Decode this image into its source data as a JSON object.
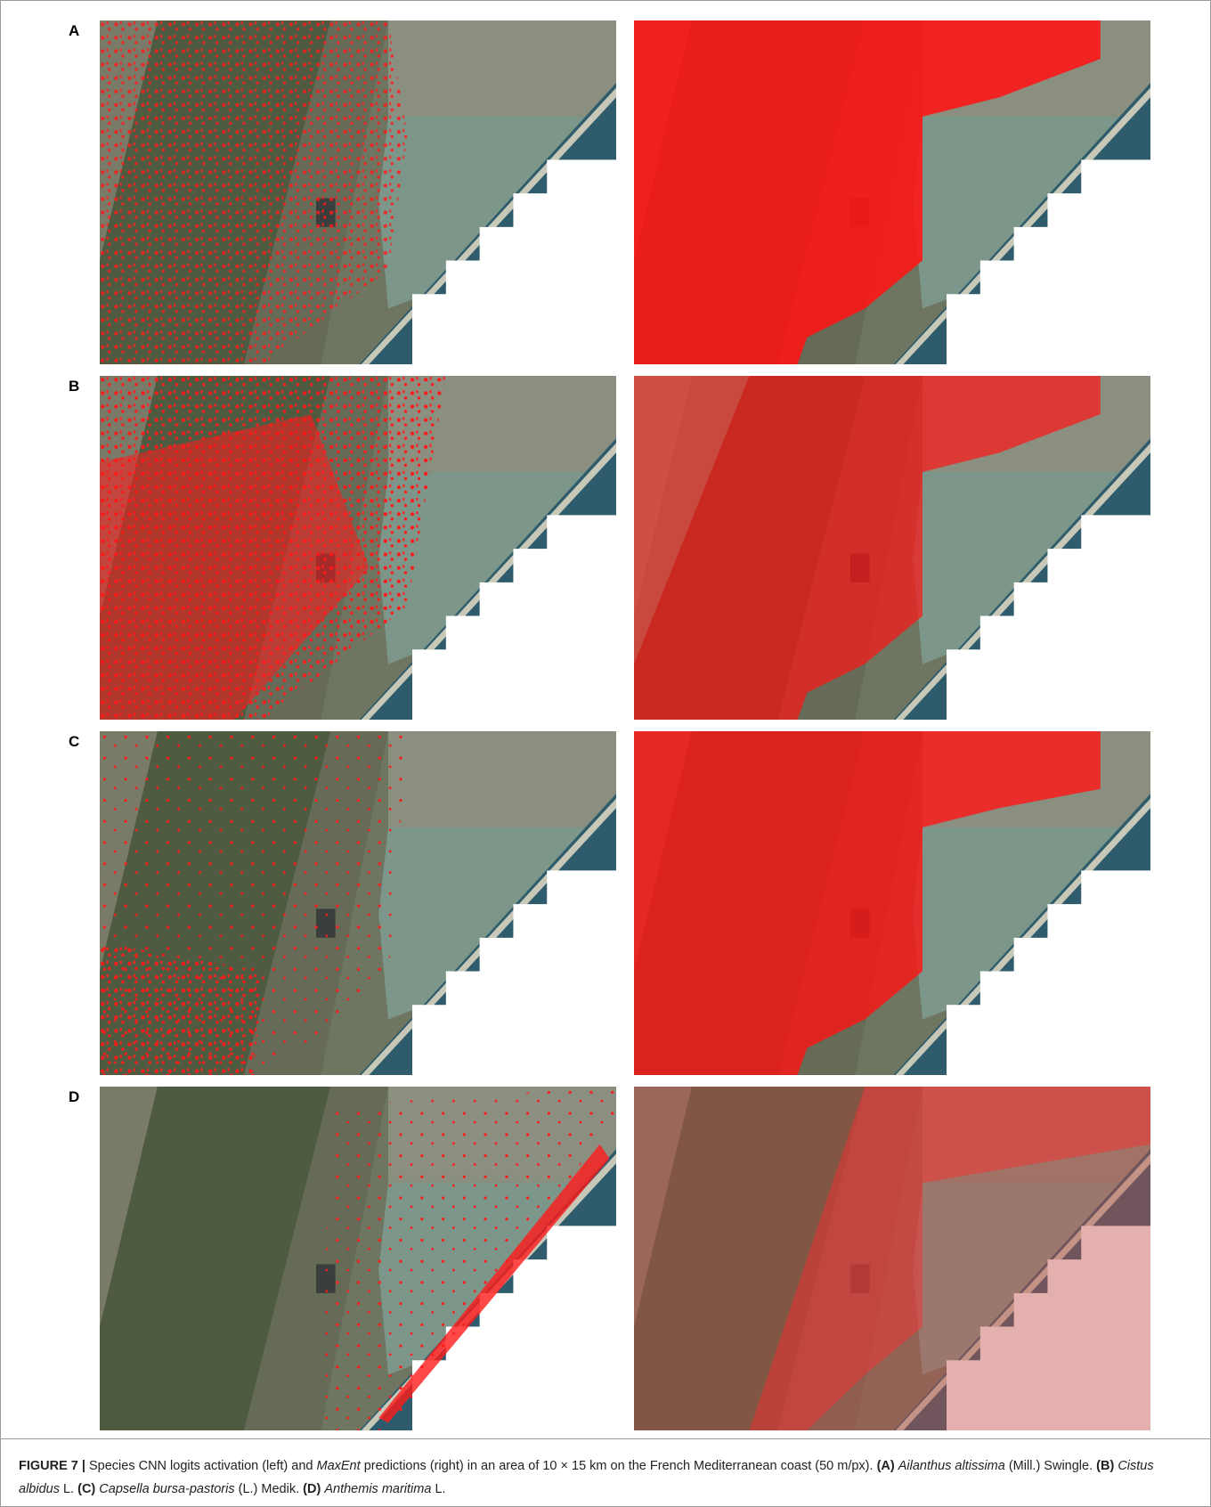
{
  "panels": [
    {
      "label": "A"
    },
    {
      "label": "B"
    },
    {
      "label": "C"
    },
    {
      "label": "D"
    }
  ],
  "caption": {
    "segments": [
      "FIGURE 7 |",
      "Species CNN logits activation (left) and",
      "MaxEnt",
      "predictions (right) in an area of 10 × 15 km on the French Mediterranean coast (50 m/px).",
      "(A)",
      "Ailanthus altissima",
      "(Mill.) Swingle.",
      "(B)",
      "Cistus albidus",
      "L.",
      "(C)",
      "Capsella bursa-pastoris",
      "(L.) Medik.",
      "(D)",
      "Anthemis maritima",
      "L."
    ]
  }
}
